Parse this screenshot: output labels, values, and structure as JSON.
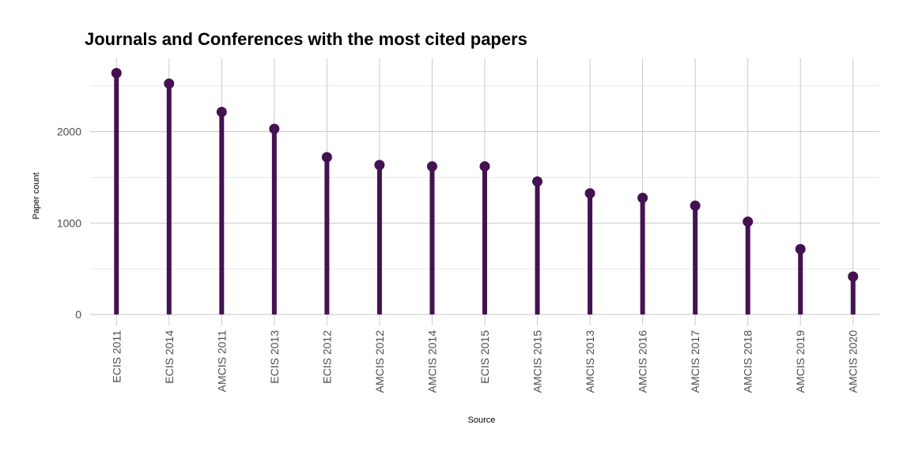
{
  "chart_data": {
    "type": "lollipop",
    "title": "Journals and Conferences with the most cited papers",
    "xlabel": "Source",
    "ylabel": "Paper count",
    "categories": [
      "ECIS 2011",
      "ECIS 2014",
      "AMCIS 2011",
      "ECIS 2013",
      "ECIS 2012",
      "AMCIS 2012",
      "AMCIS 2014",
      "ECIS 2015",
      "AMCIS 2015",
      "AMCIS 2013",
      "AMCIS 2016",
      "AMCIS 2017",
      "AMCIS 2018",
      "AMCIS 2019",
      "AMCIS 2020"
    ],
    "values": [
      2640,
      2525,
      2215,
      2030,
      1720,
      1635,
      1620,
      1620,
      1455,
      1325,
      1275,
      1190,
      1015,
      715,
      415
    ],
    "yticks": [
      0,
      1000,
      2000
    ],
    "ylim": [
      -120,
      2800
    ],
    "grid": true,
    "legend": "none",
    "color": "#441151"
  }
}
